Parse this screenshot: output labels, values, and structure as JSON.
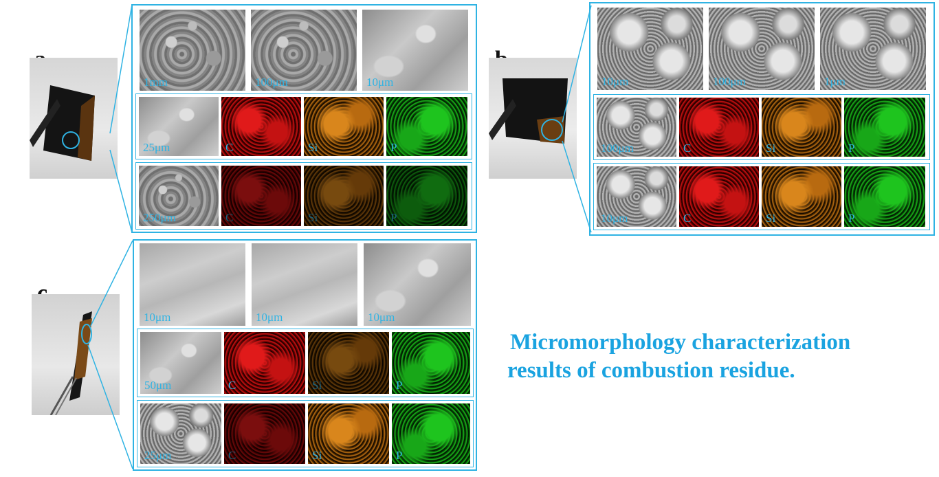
{
  "colors": {
    "accent": "#2fb3e3",
    "caption": "#1aa3e0"
  },
  "panels": {
    "a": {
      "letter": "a",
      "row1": [
        "1mm",
        "100μm",
        "10μm"
      ],
      "row2": [
        "25μm",
        "C",
        "Si",
        "P"
      ],
      "row3": [
        "250μm",
        "C",
        "Si",
        "P"
      ]
    },
    "b": {
      "letter": "b",
      "row1": [
        "10μm",
        "100μm",
        "1μm"
      ],
      "row2": [
        "100μm",
        "C",
        "Si",
        "P"
      ],
      "row3": [
        "10μm",
        "C",
        "Si",
        "P"
      ]
    },
    "c": {
      "letter": "c",
      "row1": [
        "10μm",
        "10μm",
        "10μm"
      ],
      "row2": [
        "50μm",
        "C",
        "Si",
        "P"
      ],
      "row3": [
        "25μm",
        "C",
        "Si",
        "P"
      ]
    }
  },
  "caption": {
    "line1": "Micromorphology characterization",
    "line2": "results of combustion residue."
  }
}
